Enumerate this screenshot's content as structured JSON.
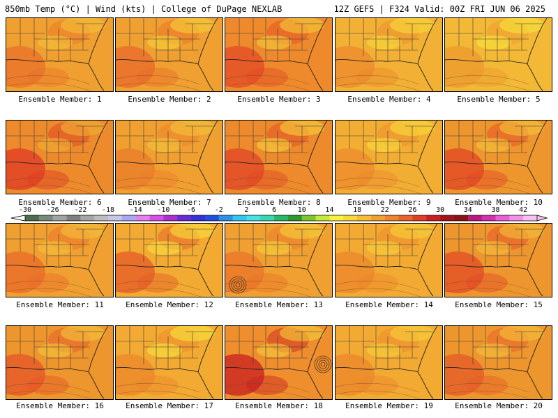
{
  "header": {
    "left": "850mb Temp (°C) | Wind (kts) | College of DuPage NEXLAB",
    "right": "12Z GEFS | F324 Valid: 00Z FRI JUN 06 2025"
  },
  "members": [
    {
      "label": "Ensemble Member: 1",
      "base": "#f0a030",
      "hot": "#e8702a",
      "cool": "#f4c23a",
      "low": false
    },
    {
      "label": "Ensemble Member: 2",
      "base": "#f0a030",
      "hot": "#e86a2a",
      "cool": "#f6d03a",
      "low": false
    },
    {
      "label": "Ensemble Member: 3",
      "base": "#ee8a2c",
      "hot": "#e24a26",
      "cool": "#f6cc3a",
      "low": false
    },
    {
      "label": "Ensemble Member: 4",
      "base": "#f2b034",
      "hot": "#ec8a2c",
      "cool": "#f8dc3a",
      "low": false
    },
    {
      "label": "Ensemble Member: 5",
      "base": "#f3b836",
      "hot": "#ee9a2e",
      "cool": "#f8e43c",
      "low": false
    },
    {
      "label": "Ensemble Member: 6",
      "base": "#ec8a2c",
      "hot": "#e03a24",
      "cool": "#f2b034",
      "low": false
    },
    {
      "label": "Ensemble Member: 7",
      "base": "#f0a030",
      "hot": "#ea7c2b",
      "cool": "#f4c43a",
      "low": false
    },
    {
      "label": "Ensemble Member: 8",
      "base": "#ec8a2c",
      "hot": "#e24426",
      "cool": "#f6d23a",
      "low": false
    },
    {
      "label": "Ensemble Member: 9",
      "base": "#f2ae33",
      "hot": "#ec8a2c",
      "cool": "#f8dc3a",
      "low": false
    },
    {
      "label": "Ensemble Member: 10",
      "base": "#ee962e",
      "hot": "#e24426",
      "cool": "#f4c43a",
      "low": false
    },
    {
      "label": "Ensemble Member: 11",
      "base": "#f0a030",
      "hot": "#ea6a2a",
      "cool": "#f4c23a",
      "low": false
    },
    {
      "label": "Ensemble Member: 12",
      "base": "#f2aa32",
      "hot": "#e45a28",
      "cool": "#f8e03c",
      "low": false
    },
    {
      "label": "Ensemble Member: 13",
      "base": "#f0a030",
      "hot": "#ea742a",
      "cool": "#f6d03a",
      "low": true
    },
    {
      "label": "Ensemble Member: 14",
      "base": "#f2aa32",
      "hot": "#ec862c",
      "cool": "#f6d23a",
      "low": false
    },
    {
      "label": "Ensemble Member: 15",
      "base": "#ee962e",
      "hot": "#e24a26",
      "cool": "#f4c23a",
      "low": false
    },
    {
      "label": "Ensemble Member: 16",
      "base": "#ee962e",
      "hot": "#e45428",
      "cool": "#f4c43a",
      "low": false
    },
    {
      "label": "Ensemble Member: 17",
      "base": "#f2aa32",
      "hot": "#ec862c",
      "cool": "#f8e43c",
      "low": false
    },
    {
      "label": "Ensemble Member: 18",
      "base": "#ee8e2d",
      "hot": "#c81e22",
      "cool": "#f6cc3a",
      "low": true
    },
    {
      "label": "Ensemble Member: 19",
      "base": "#f2aa32",
      "hot": "#ec862c",
      "cool": "#f6d03a",
      "low": false
    },
    {
      "label": "Ensemble Member: 20",
      "base": "#ee962e",
      "hot": "#e45a28",
      "cool": "#f4c23a",
      "low": false
    }
  ],
  "colorbar": {
    "ticks": [
      "-30",
      "-26",
      "-22",
      "-18",
      "-14",
      "-10",
      "-6",
      "-2",
      "2",
      "6",
      "10",
      "14",
      "18",
      "22",
      "26",
      "30",
      "34",
      "38",
      "42"
    ],
    "colors": [
      "#4d6e4d",
      "#7a8a7a",
      "#a3a3a3",
      "#7f7f7f",
      "#a6a6a6",
      "#bdbdbd",
      "#c7c7ea",
      "#aaa9f0",
      "#e87ef0",
      "#d84ee4",
      "#b02ed0",
      "#6a2ad8",
      "#3a2ed8",
      "#2050e0",
      "#2a90e8",
      "#30c8f0",
      "#48e2e6",
      "#38d8b0",
      "#28b868",
      "#2e9a2e",
      "#7ec82e",
      "#c8e83a",
      "#f8f23c",
      "#f8d83a",
      "#f6be36",
      "#f2a032",
      "#ee842e",
      "#ea642a",
      "#e23e26",
      "#cc1e22",
      "#a4141c",
      "#881418",
      "#b81a7e",
      "#d430b0",
      "#e860d8",
      "#f090e8",
      "#f8c0f0"
    ]
  }
}
